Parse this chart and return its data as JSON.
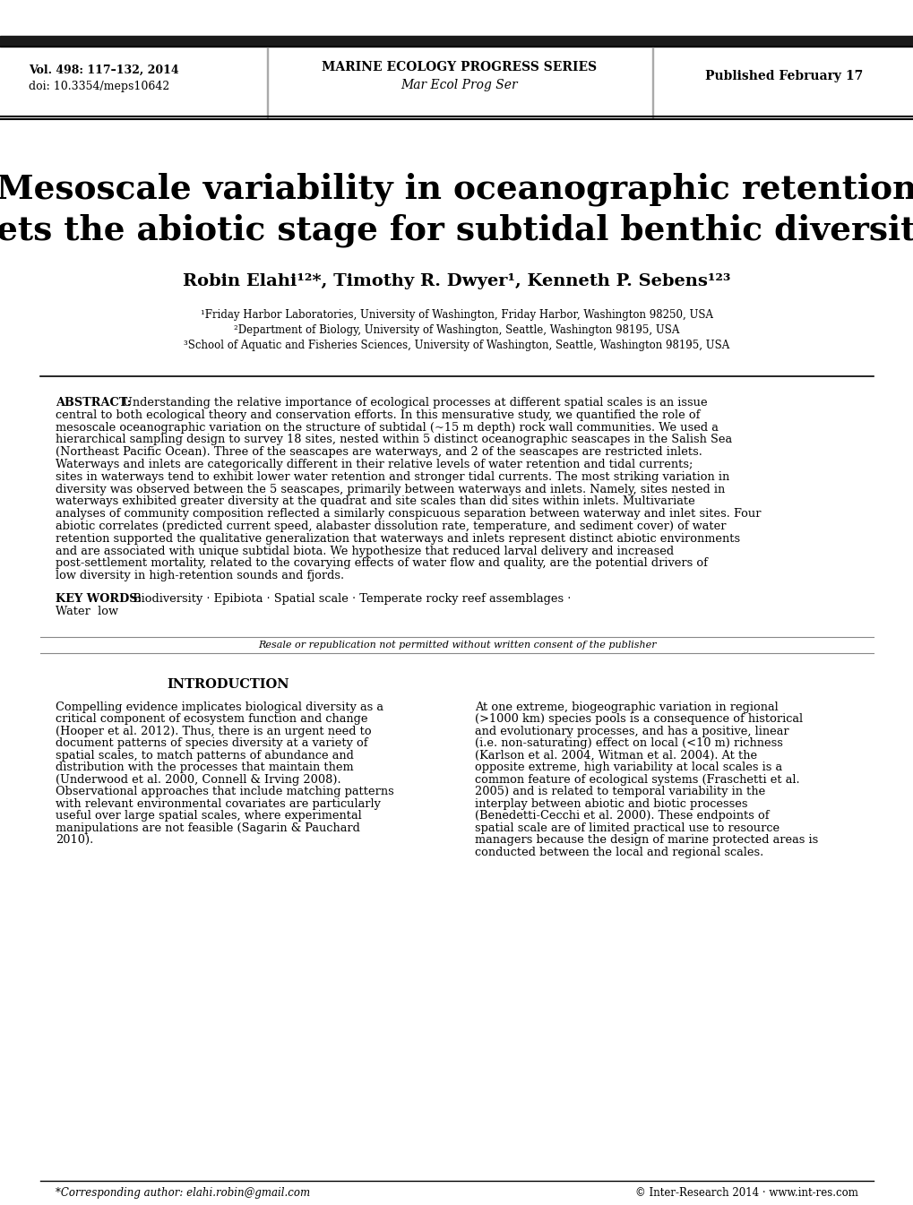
{
  "bg_color": "#ffffff",
  "header_bar_color": "#1a1a1a",
  "left_col_text_line1": "Vol. 498: 117–132, 2014",
  "left_col_text_line2": "doi: 10.3354/meps10642",
  "center_col_text_line1": "MARINE ECOLOGY PROGRESS SERIES",
  "center_col_text_line2": "Mar Ecol Prog Ser",
  "right_col_text": "Published February 17",
  "paper_title_line1": "Mesoscale variability in oceanographic retention",
  "paper_title_line2": "sets the abiotic stage for subtidal benthic diversity",
  "authors": "Robin Elahi¹²*, Timothy R. Dwyer¹, Kenneth P. Sebens¹²³",
  "affil1": "¹Friday Harbor Laboratories, University of Washington, Friday Harbor, Washington 98250, USA",
  "affil2": "²Department of Biology, University of Washington, Seattle, Washington 98195, USA",
  "affil3": "³School of Aquatic and Fisheries Sciences, University of Washington, Seattle, Washington 98195, USA",
  "abstract_text": "Understanding the relative importance of ecological processes at different spatial scales is an issue central to both ecological theory and conservation efforts. In this mensurative study, we quantified the role of mesoscale oceanographic variation on the structure of subtidal (~15 m depth) rock wall communities. We used a hierarchical sampling design to survey 18 sites, nested within 5 distinct oceanographic seascapes in the Salish Sea (Northeast Pacific Ocean). Three of the seascapes are waterways, and 2 of the seascapes are restricted inlets. Waterways and inlets are categorically different in their relative levels of water retention and tidal currents; sites in waterways tend to exhibit lower water retention and stronger tidal currents. The most striking variation in diversity was observed between the 5 seascapes, primarily between waterways and inlets. Namely, sites nested in waterways exhibited greater diversity at the quadrat and site scales than did sites within inlets. Multivariate analyses of community composition reflected a similarly conspicuous separation between waterway and inlet sites. Four abiotic correlates (predicted current speed, alabaster dissolution rate, temperature, and sediment cover) of water retention supported the qualitative generalization that waterways and inlets represent distinct abiotic environments and are associated with unique subtidal biota. We hypothesize that reduced larval delivery and increased post-settlement mortality, related to the covarying effects of water flow and quality, are the potential drivers of low diversity in high-retention sounds and fjords.",
  "keywords_line1": "KEY WORDS:   Biodiversity · Epibiota · Spatial scale · Temperate rocky reef assemblages ·",
  "keywords_line2": "Water  low",
  "resale_text": "Resale or republication not permitted without written consent of the publisher",
  "intro_heading": "INTRODUCTION",
  "intro_left": "Compelling evidence implicates biological diversity as a critical component of ecosystem function and change (Hooper et al. 2012). Thus, there is an urgent need to document patterns of species diversity at a variety of spatial scales, to match patterns of abundance and distribution with the processes that maintain them (Underwood et al. 2000, Connell & Irving 2008). Observational approaches that include matching patterns with relevant environmental covariates are particularly useful over large spatial scales, where experimental manipulations are not feasible (Sagarin & Pauchard 2010).",
  "intro_right": "At one extreme, biogeographic variation in regional (>1000 km) species pools is a consequence of historical and evolutionary processes, and has a positive, linear (i.e. non-saturating) effect on local (<10 m) richness (Karlson et al. 2004, Witman et al. 2004). At the opposite extreme, high variability at local scales is a common feature of ecological systems (Fraschetti et al. 2005) and is related to temporal variability in the interplay between abiotic and biotic processes (Benedetti-Cecchi et al. 2000). These endpoints of spatial scale are of limited practical use to resource managers because the design of marine protected areas is conducted between the local and regional scales.",
  "footnote_left": "*Corresponding author: elahi.robin@gmail.com",
  "footnote_right": "© Inter-Research 2014 · www.int-res.com"
}
